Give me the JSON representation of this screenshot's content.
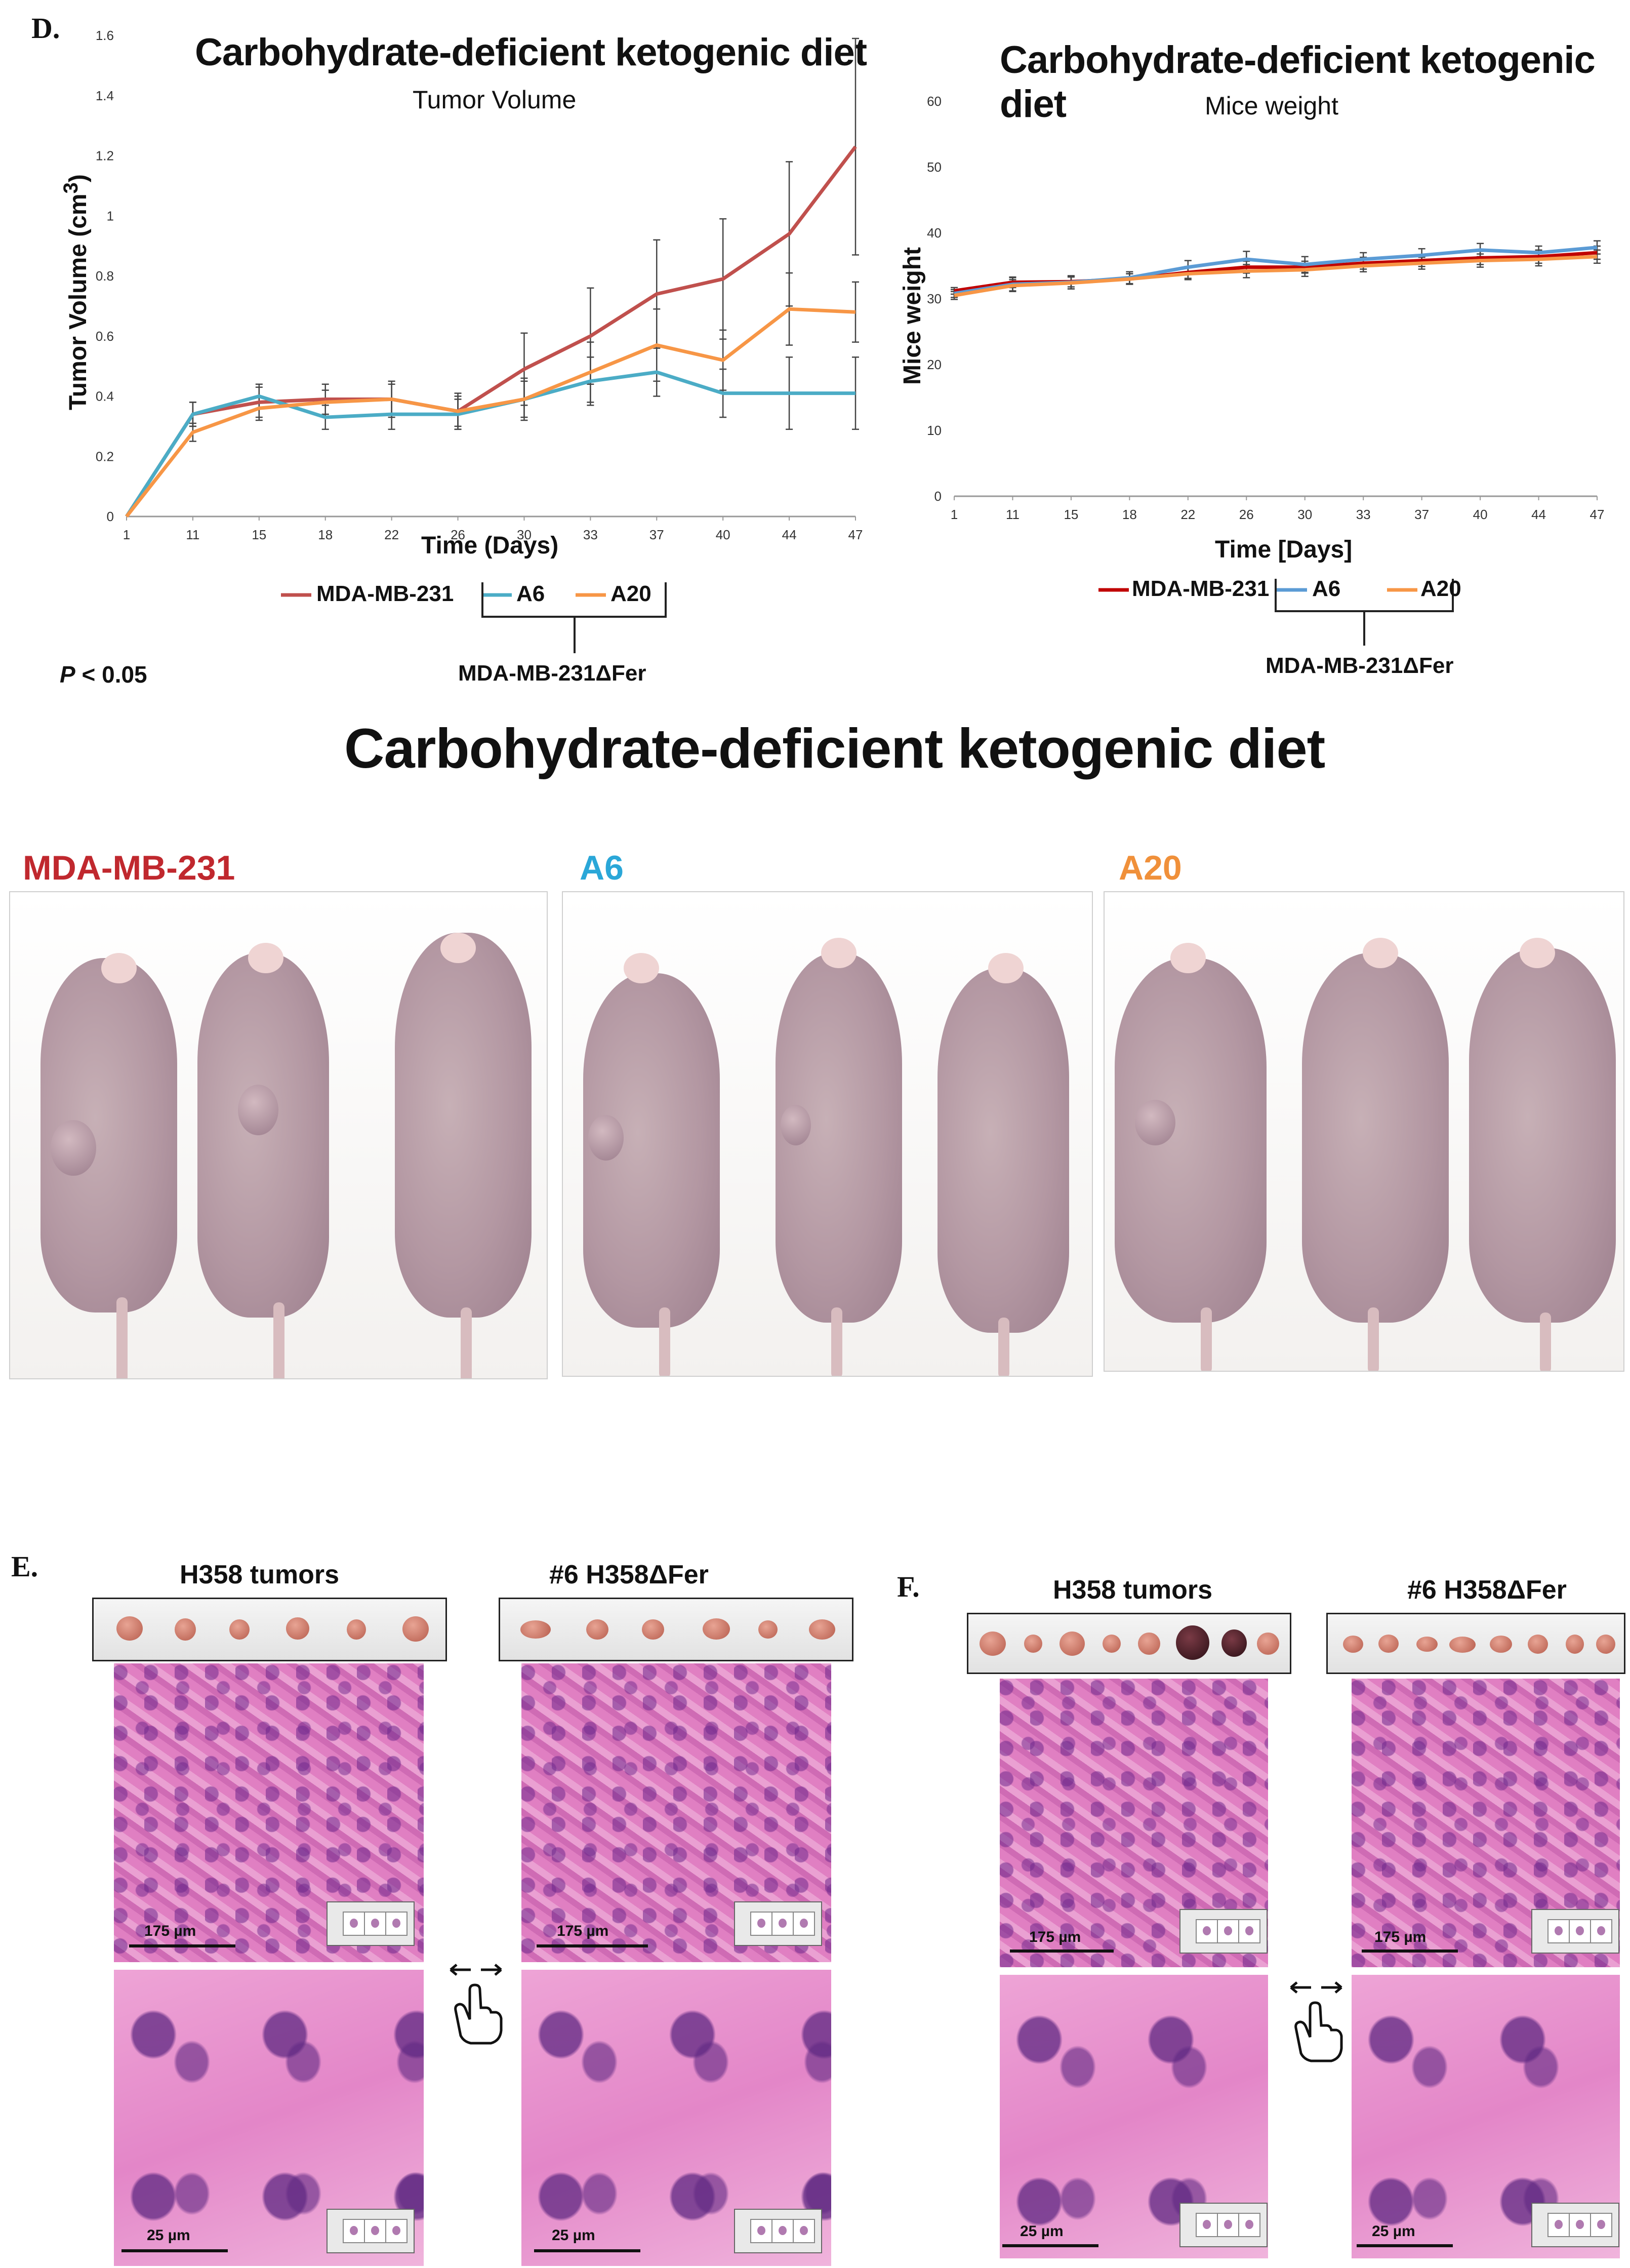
{
  "panel_d": {
    "letter": "D.",
    "p_value": "P < 0.05",
    "p_value_italic": "P",
    "p_value_rest": " < 0.05"
  },
  "chart_data": [
    {
      "type": "line",
      "title": "Carbohydrate-deficient ketogenic diet",
      "subtitle": "Tumor Volume",
      "xlabel": "Time (Days)",
      "ylabel": "Tumor Volume (cm³)",
      "ylim": [
        0,
        1.6
      ],
      "yticks": [
        "0",
        "0.2",
        "0.4",
        "0.6",
        "0.8",
        "1",
        "1.2",
        "1.4",
        "1.6"
      ],
      "categories": [
        "1",
        "11",
        "15",
        "18",
        "22",
        "26",
        "30",
        "33",
        "37",
        "40",
        "44",
        "47"
      ],
      "series": [
        {
          "name": "MDA-MB-231",
          "color": "#c0504d",
          "values": [
            0,
            0.34,
            0.38,
            0.39,
            0.39,
            0.35,
            0.49,
            0.6,
            0.74,
            0.79,
            0.94,
            1.23
          ],
          "errors": [
            0,
            0.04,
            0.05,
            0.05,
            0.06,
            0.06,
            0.12,
            0.16,
            0.18,
            0.2,
            0.24,
            0.36
          ]
        },
        {
          "name": "A6",
          "color": "#4bacc6",
          "values": [
            0,
            0.34,
            0.4,
            0.33,
            0.34,
            0.34,
            0.39,
            0.45,
            0.48,
            0.41,
            0.41,
            0.41
          ],
          "errors": [
            0,
            0.04,
            0.04,
            0.04,
            0.05,
            0.05,
            0.06,
            0.08,
            0.08,
            0.08,
            0.12,
            0.12
          ]
        },
        {
          "name": "A20",
          "color": "#f79646",
          "values": [
            0,
            0.28,
            0.36,
            0.38,
            0.39,
            0.35,
            0.39,
            0.48,
            0.57,
            0.52,
            0.69,
            0.68
          ],
          "errors": [
            0,
            0.03,
            0.04,
            0.04,
            0.05,
            0.05,
            0.07,
            0.1,
            0.12,
            0.1,
            0.12,
            0.1
          ]
        }
      ],
      "legend": {
        "items": [
          "MDA-MB-231",
          "A6",
          "A20"
        ],
        "group_label": "MDA-MB-231ΔFer"
      }
    },
    {
      "type": "line",
      "title": "Carbohydrate-deficient ketogenic diet",
      "subtitle": "Mice weight",
      "xlabel": "Time [Days]",
      "ylabel": "Mice weight",
      "ylim": [
        0,
        60
      ],
      "yticks": [
        "0",
        "10",
        "20",
        "30",
        "40",
        "50",
        "60"
      ],
      "categories": [
        "1",
        "11",
        "15",
        "18",
        "22",
        "26",
        "30",
        "33",
        "37",
        "40",
        "44",
        "47"
      ],
      "series": [
        {
          "name": "MDA-MB-231",
          "color": "#c00000",
          "values": [
            31.2,
            32.5,
            32.6,
            33.0,
            34.0,
            34.8,
            34.8,
            35.4,
            35.8,
            36.2,
            36.4,
            37.0
          ],
          "errors": [
            0.5,
            0.8,
            0.8,
            0.8,
            0.9,
            0.9,
            0.9,
            0.9,
            0.9,
            1.0,
            1.0,
            1.0
          ]
        },
        {
          "name": "A6",
          "color": "#5b9bd5",
          "values": [
            30.8,
            32.2,
            32.5,
            33.2,
            34.8,
            36.0,
            35.2,
            36.0,
            36.6,
            37.4,
            37.0,
            37.8
          ],
          "errors": [
            0.6,
            1.0,
            1.0,
            0.9,
            1.0,
            1.2,
            1.2,
            1.0,
            1.0,
            1.0,
            1.0,
            1.0
          ]
        },
        {
          "name": "A20",
          "color": "#f79646",
          "values": [
            30.5,
            32.0,
            32.4,
            33.0,
            33.8,
            34.2,
            34.4,
            35.0,
            35.4,
            35.8,
            36.0,
            36.4
          ],
          "errors": [
            0.6,
            0.9,
            0.9,
            0.8,
            0.9,
            1.0,
            1.0,
            0.9,
            0.9,
            1.0,
            1.0,
            1.0
          ]
        }
      ],
      "legend": {
        "items": [
          "MDA-MB-231",
          "A6",
          "A20"
        ],
        "group_label": "MDA-MB-231ΔFer"
      }
    }
  ],
  "photos": {
    "title": "Carbohydrate-deficient ketogenic diet",
    "groups": [
      {
        "label": "MDA-MB-231",
        "color": "#c0282e"
      },
      {
        "label": "A6",
        "color": "#2aa7d8"
      },
      {
        "label": "A20",
        "color": "#f0903a"
      }
    ]
  },
  "panel_e": {
    "letter": "E.",
    "left_title": "H358 tumors",
    "right_title": "#6 H358ΔFer",
    "scale_low": "175 µm",
    "scale_high": "25 µm"
  },
  "panel_f": {
    "letter": "F.",
    "left_title": "H358 tumors",
    "right_title": "#6 H358ΔFer",
    "scale_low": "175 µm",
    "scale_high": "25 µm"
  }
}
